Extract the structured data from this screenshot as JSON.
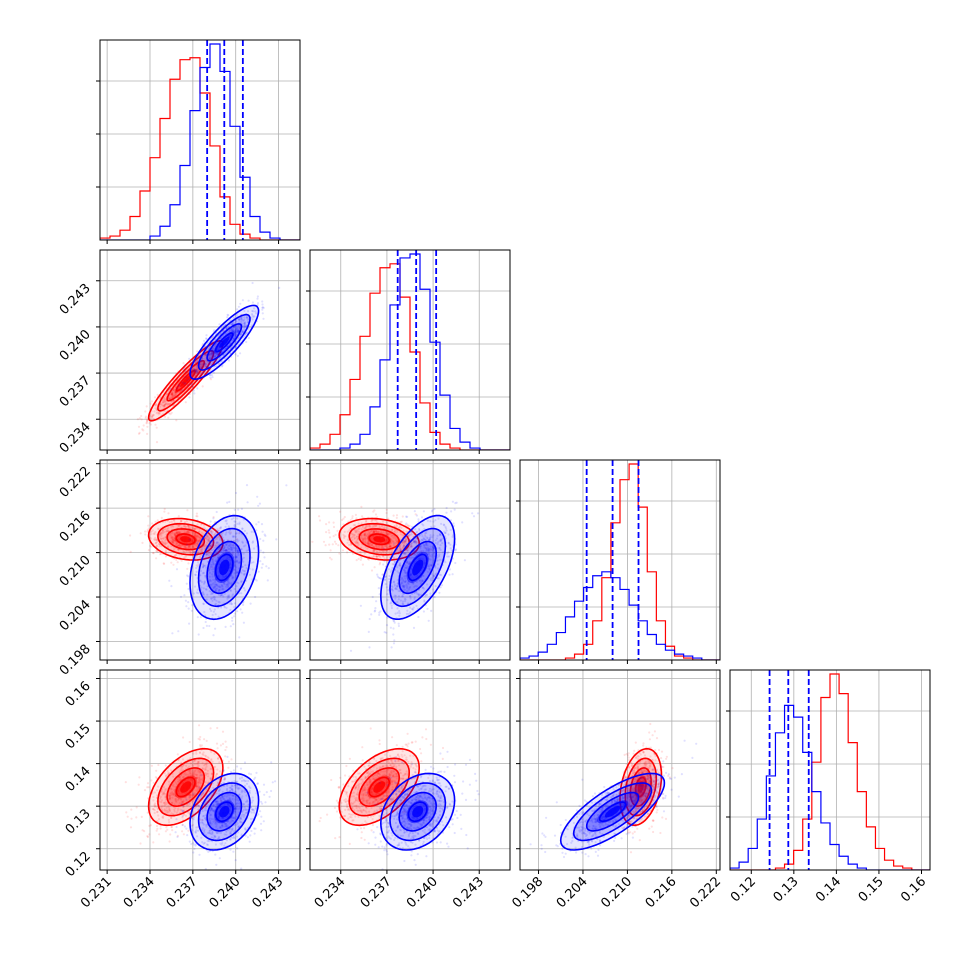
{
  "chart_data": {
    "type": "corner",
    "title": "",
    "colors": {
      "model_a": "#ff0000",
      "model_b": "#0000ff"
    },
    "grid": true,
    "parameters": [
      {
        "name": "",
        "range": [
          0.2305,
          0.2445
        ],
        "ticks": [
          0.231,
          0.234,
          0.237,
          0.24,
          0.243
        ],
        "tick_labels": [
          "0.231",
          "0.234",
          "0.237",
          "0.240",
          "0.243"
        ],
        "shown_on_y": false
      },
      {
        "name": "",
        "range": [
          0.232,
          0.245
        ],
        "ticks": [
          0.234,
          0.237,
          0.24,
          0.243
        ],
        "tick_labels": [
          "0.234",
          "0.237",
          "0.240",
          "0.243"
        ],
        "shown_on_y": true
      },
      {
        "name": "",
        "range": [
          0.1955,
          0.2225
        ],
        "ticks": [
          0.198,
          0.204,
          0.21,
          0.216,
          0.222
        ],
        "tick_labels": [
          "0.198",
          "0.204",
          "0.210",
          "0.216",
          "0.222"
        ],
        "shown_on_y": true
      },
      {
        "name": "",
        "range": [
          0.115,
          0.162
        ],
        "ticks": [
          0.12,
          0.13,
          0.14,
          0.15,
          0.16
        ],
        "tick_labels": [
          "0.12",
          "0.13",
          "0.14",
          "0.15",
          "0.16"
        ],
        "shown_on_y": true
      }
    ],
    "series": [
      {
        "color": "#ff0000",
        "mean": [
          0.2365,
          0.2365,
          0.2118,
          0.1345
        ],
        "std": [
          0.0013,
          0.0013,
          0.0014,
          0.0045
        ]
      },
      {
        "color": "#0000ff",
        "mean": [
          0.2392,
          0.239,
          0.208,
          0.1287
        ],
        "std": [
          0.0012,
          0.0012,
          0.0035,
          0.0045
        ]
      }
    ],
    "correlations": [
      {
        "params": [
          0,
          1
        ],
        "red": 0.92,
        "blue": 0.85
      },
      {
        "params": [
          0,
          2
        ],
        "red": -0.2,
        "blue": 0.3
      },
      {
        "params": [
          1,
          2
        ],
        "red": -0.2,
        "blue": 0.55
      },
      {
        "params": [
          0,
          3
        ],
        "red": 0.5,
        "blue": 0.3
      },
      {
        "params": [
          1,
          3
        ],
        "red": 0.5,
        "blue": 0.3
      },
      {
        "params": [
          2,
          3
        ],
        "red": 0.3,
        "blue": 0.75
      }
    ],
    "quantiles_blue": [
      [
        0.238,
        0.2392,
        0.2405
      ],
      [
        0.2377,
        0.2389,
        0.2402
      ],
      [
        0.2045,
        0.208,
        0.2115
      ],
      [
        0.1243,
        0.1287,
        0.1335
      ]
    ],
    "histograms": [
      {
        "param": 0,
        "bins": 20,
        "red": [
          1,
          2,
          5,
          12,
          25,
          42,
          62,
          82,
          92,
          93,
          75,
          48,
          22,
          8,
          3,
          1,
          0,
          0,
          0,
          0
        ],
        "blue": [
          0,
          0,
          0,
          0,
          0,
          2,
          7,
          18,
          38,
          66,
          88,
          100,
          86,
          58,
          32,
          12,
          4,
          1,
          0,
          0
        ]
      },
      {
        "param": 1,
        "bins": 20,
        "red": [
          1,
          3,
          8,
          18,
          36,
          58,
          80,
          93,
          95,
          78,
          50,
          24,
          9,
          3,
          1,
          0,
          0,
          0,
          0,
          0
        ],
        "blue": [
          0,
          0,
          0,
          1,
          3,
          8,
          22,
          46,
          74,
          98,
          100,
          82,
          55,
          28,
          11,
          4,
          1,
          0,
          0,
          0
        ]
      },
      {
        "param": 2,
        "bins": 22,
        "red": [
          0,
          0,
          0,
          0,
          0,
          1,
          3,
          8,
          20,
          42,
          70,
          92,
          100,
          78,
          45,
          20,
          7,
          2,
          1,
          0,
          0,
          0
        ],
        "blue": [
          1,
          2,
          4,
          8,
          14,
          22,
          30,
          37,
          43,
          45,
          42,
          36,
          28,
          20,
          13,
          8,
          5,
          3,
          2,
          1,
          0,
          0
        ]
      },
      {
        "param": 3,
        "bins": 22,
        "red": [
          0,
          0,
          0,
          0,
          0,
          1,
          3,
          10,
          26,
          55,
          88,
          100,
          90,
          65,
          40,
          22,
          11,
          5,
          2,
          1,
          0,
          0
        ],
        "blue": [
          1,
          4,
          11,
          26,
          48,
          70,
          84,
          78,
          60,
          40,
          24,
          13,
          7,
          3,
          1,
          0,
          0,
          0,
          0,
          0
        ]
      }
    ]
  }
}
